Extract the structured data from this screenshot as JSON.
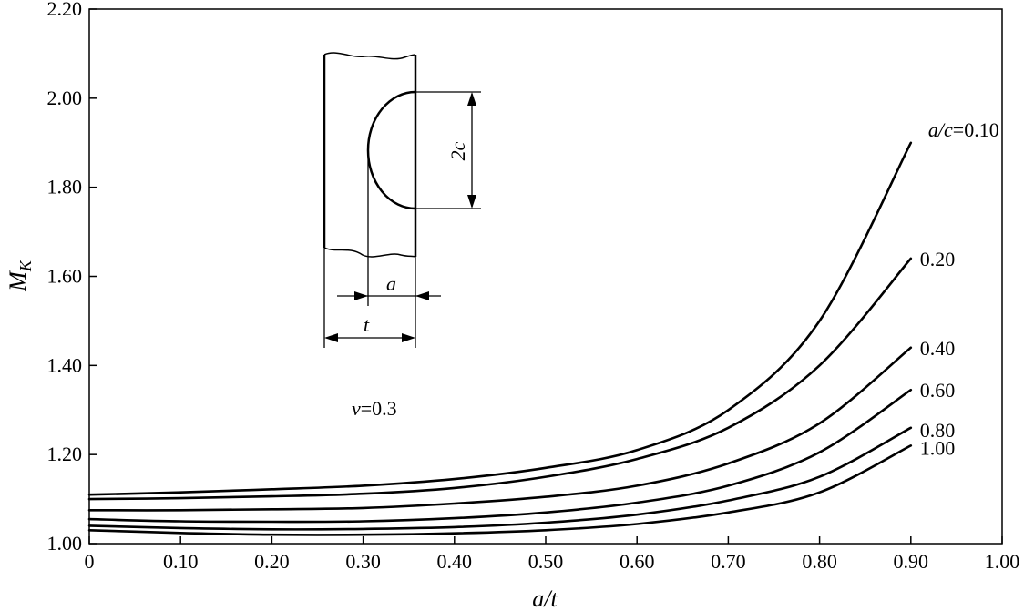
{
  "chart_data": {
    "type": "line",
    "title": "",
    "xlabel": "a/t",
    "ylabel": "M_K",
    "xlim": [
      0,
      1.0
    ],
    "ylim": [
      1.0,
      2.2
    ],
    "xticks": [
      "0",
      "0.10",
      "0.20",
      "0.30",
      "0.40",
      "0.50",
      "0.60",
      "0.70",
      "0.80",
      "0.90",
      "1.00"
    ],
    "yticks": [
      "1.00",
      "1.20",
      "1.40",
      "1.60",
      "1.80",
      "2.00",
      "2.20"
    ],
    "x": [
      0,
      0.1,
      0.2,
      0.3,
      0.4,
      0.5,
      0.6,
      0.7,
      0.8,
      0.9
    ],
    "series": [
      {
        "name": "a/c=0.10",
        "values": [
          1.11,
          1.115,
          1.122,
          1.13,
          1.145,
          1.17,
          1.21,
          1.3,
          1.5,
          1.9
        ]
      },
      {
        "name": "0.20",
        "values": [
          1.1,
          1.102,
          1.106,
          1.112,
          1.125,
          1.15,
          1.19,
          1.26,
          1.4,
          1.64
        ]
      },
      {
        "name": "0.40",
        "values": [
          1.075,
          1.075,
          1.077,
          1.08,
          1.09,
          1.105,
          1.13,
          1.18,
          1.27,
          1.44
        ]
      },
      {
        "name": "0.60",
        "values": [
          1.055,
          1.05,
          1.049,
          1.05,
          1.057,
          1.07,
          1.092,
          1.13,
          1.205,
          1.345
        ]
      },
      {
        "name": "0.80",
        "values": [
          1.04,
          1.035,
          1.032,
          1.033,
          1.037,
          1.047,
          1.065,
          1.097,
          1.15,
          1.26
        ]
      },
      {
        "name": "1.00",
        "values": [
          1.03,
          1.024,
          1.02,
          1.02,
          1.023,
          1.03,
          1.044,
          1.07,
          1.115,
          1.22
        ]
      }
    ],
    "grid": false,
    "legend": "inline labels at right end of curves"
  },
  "annotations": {
    "poisson": "v=0.3",
    "inset": {
      "dim_a": "a",
      "dim_t": "t",
      "dim_2c": "2c"
    }
  }
}
